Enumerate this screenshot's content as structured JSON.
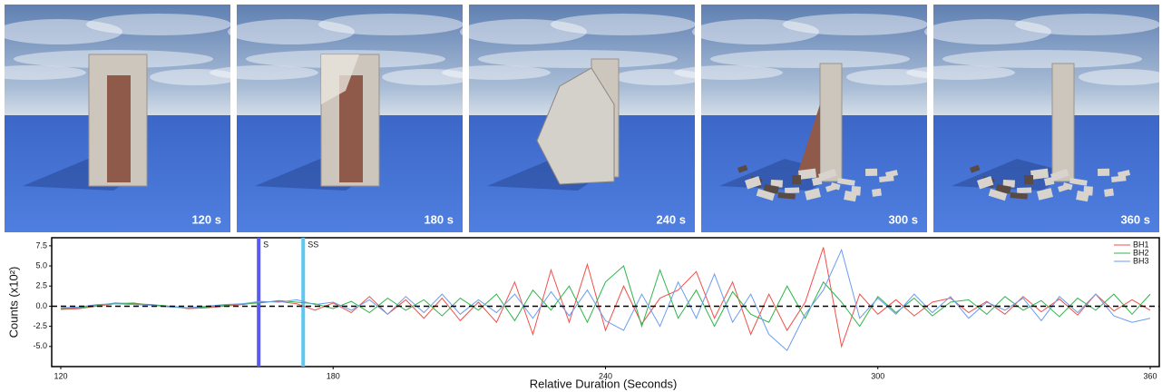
{
  "panels": [
    {
      "label": "120 s"
    },
    {
      "label": "180 s"
    },
    {
      "label": "240 s"
    },
    {
      "label": "300 s"
    },
    {
      "label": "360 s"
    }
  ],
  "chart_data": {
    "type": "line",
    "xlabel": "Relative Duration (Seconds)",
    "ylabel": "Counts (x10²)",
    "xlim": [
      118,
      362
    ],
    "ylim": [
      -7.5,
      8.5
    ],
    "xticks": [
      120,
      180,
      240,
      300,
      360
    ],
    "yticks": [
      7.5,
      {
        "value": 5,
        "label": "5.0"
      },
      2.5,
      {
        "value": 0,
        "label": "0.0"
      },
      -2.5,
      {
        "value": -5,
        "label": "-5.0"
      }
    ],
    "reference_line": 0,
    "legend": "upper right",
    "annotations": [
      {
        "x": 163.6,
        "label": "S",
        "color": "#5a5af0"
      },
      {
        "x": 173.4,
        "label": "SS",
        "color": "#5cc8f0"
      }
    ],
    "x": [
      120,
      124,
      128,
      132,
      136,
      140,
      144,
      148,
      152,
      156,
      160,
      164,
      168,
      172,
      176,
      180,
      184,
      188,
      192,
      196,
      200,
      204,
      208,
      212,
      216,
      220,
      224,
      228,
      232,
      236,
      240,
      244,
      248,
      252,
      256,
      260,
      264,
      268,
      272,
      276,
      280,
      284,
      288,
      292,
      296,
      300,
      304,
      308,
      312,
      316,
      320,
      324,
      328,
      332,
      336,
      340,
      344,
      348,
      352,
      356,
      360
    ],
    "series": [
      {
        "name": "BH1",
        "color": "#f0504a",
        "values": [
          -0.4,
          -0.3,
          0,
          0.3,
          0.4,
          0.1,
          0,
          -0.3,
          -0.2,
          0,
          0.2,
          0.5,
          0.6,
          0.3,
          -0.5,
          0.4,
          -0.8,
          1.2,
          -1.0,
          0.8,
          -1.5,
          1.0,
          -1.8,
          0.5,
          -2.0,
          3.0,
          -3.5,
          4.5,
          -2.0,
          5.2,
          -3.0,
          2.5,
          -2.2,
          1.0,
          2.0,
          4.3,
          -1.5,
          3.0,
          -3.5,
          1.5,
          -3.0,
          0.5,
          7.3,
          -5.0,
          1.5,
          -1.0,
          0.8,
          -1.2,
          0.5,
          1.0,
          -0.8,
          0.6,
          -1.0,
          1.2,
          -0.7,
          0.9,
          -1.1,
          1.5,
          -0.6,
          0.8,
          -0.5
        ]
      },
      {
        "name": "BH2",
        "color": "#2fb54a",
        "values": [
          -0.3,
          -0.2,
          0.1,
          0.4,
          0.3,
          0.2,
          0,
          -0.2,
          -0.1,
          0.1,
          0.3,
          0.4,
          0.7,
          0.5,
          0.3,
          -0.3,
          0.6,
          -0.8,
          1.0,
          -0.5,
          0.8,
          -1.2,
          1.0,
          -0.5,
          1.5,
          -1.8,
          2.0,
          -0.5,
          2.5,
          -2.0,
          3.0,
          5.0,
          -2.5,
          4.5,
          -1.5,
          2.0,
          -2.5,
          1.8,
          -1.0,
          -2.0,
          2.5,
          -1.5,
          3.0,
          0.5,
          -2.5,
          1.2,
          -0.8,
          1.0,
          -1.2,
          0.5,
          0.8,
          -1.0,
          1.2,
          -0.5,
          0.7,
          -1.3,
          1.0,
          -0.5,
          1.5,
          -1.0,
          1.5
        ]
      },
      {
        "name": "BH3",
        "color": "#6a9cf0",
        "values": [
          -0.2,
          -0.1,
          0.2,
          0.3,
          0.2,
          0.1,
          -0.1,
          -0.2,
          0,
          0.2,
          0.3,
          0.6,
          0.5,
          0.8,
          0.2,
          0.5,
          -0.5,
          0.8,
          -1.0,
          1.2,
          -0.8,
          1.5,
          -1.0,
          0.8,
          -0.8,
          1.5,
          -1.5,
          1.8,
          -1.2,
          2.0,
          -1.8,
          -3.0,
          1.5,
          -2.5,
          3.0,
          -1.5,
          4.0,
          -2.0,
          1.5,
          -3.5,
          -5.5,
          -1.0,
          2.0,
          7.0,
          -1.5,
          1.0,
          -1.0,
          1.5,
          -0.8,
          1.2,
          -1.5,
          0.5,
          -0.5,
          1.0,
          -1.8,
          1.2,
          -0.8,
          1.5,
          -1.2,
          -2.0,
          -1.5
        ]
      }
    ]
  }
}
